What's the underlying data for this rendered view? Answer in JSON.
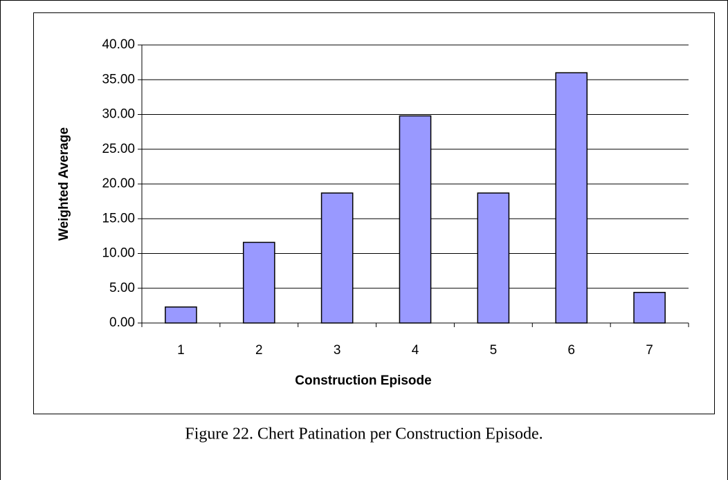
{
  "chart_data": {
    "type": "bar",
    "caption": "Figure 22. Chert Patination per Construction Episode.",
    "xlabel": "Construction Episode",
    "ylabel": "Weighted Average",
    "categories": [
      "1",
      "2",
      "3",
      "4",
      "5",
      "6",
      "7"
    ],
    "values": [
      2.3,
      11.6,
      18.7,
      29.8,
      18.7,
      36.0,
      4.4
    ],
    "color": "#9999ff",
    "ylim": [
      0,
      40
    ],
    "yticks": [
      {
        "value": 0,
        "label": "0.00"
      },
      {
        "value": 5,
        "label": "5.00"
      },
      {
        "value": 10,
        "label": "10.00"
      },
      {
        "value": 15,
        "label": "15.00"
      },
      {
        "value": 20,
        "label": "20.00"
      },
      {
        "value": 25,
        "label": "25.00"
      },
      {
        "value": 30,
        "label": "30.00"
      },
      {
        "value": 35,
        "label": "35.00"
      },
      {
        "value": 40,
        "label": "40.00"
      }
    ],
    "grid": true
  }
}
